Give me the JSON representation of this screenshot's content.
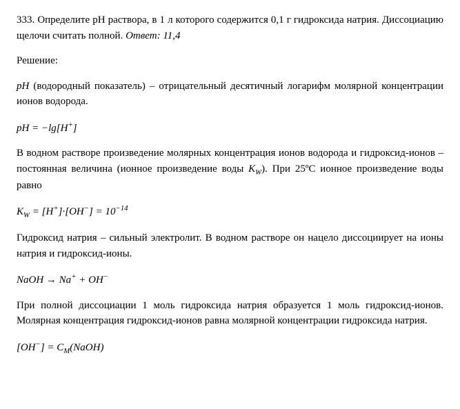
{
  "problem": {
    "number": "333.",
    "statement": "Определите рН раствора, в 1 л которого содержится 0,1 г гидроксида натрия. Диссоциацию щелочи считать полной.",
    "answer_label": "Ответ:",
    "answer_value": "11,4"
  },
  "solution_label": "Решение:",
  "para1": {
    "term": "pH",
    "term_explain": "(водородный показатель) – отрицательный десятичный логарифм молярной концентрации ионов водорода."
  },
  "formula1": {
    "lhs": "pH",
    "eq": " = ",
    "rhs_prefix": "−lg[",
    "ion": "H",
    "ion_charge": "+",
    "rhs_suffix": "]"
  },
  "para2": {
    "text_before": "В водном растворе произведение молярных концентрация ионов водорода и гидроксид-ионов – постоянная величина (ионное произведение воды ",
    "kw": "K",
    "kw_sub": "W",
    "text_after": "). При 25ºС ионное произведение воды равно"
  },
  "formula2": {
    "kw": "K",
    "kw_sub": "W",
    "eq": " = [",
    "h": "H",
    "h_charge": "+",
    "mid": "]·[",
    "oh": "OH",
    "oh_charge": "−",
    "end": "] = 10",
    "exp": "−14"
  },
  "para3": "Гидроксид натрия – сильный электролит. В водном растворе он нацело диссоциирует на ионы натрия и гидроксид-ионы.",
  "formula3": {
    "naoh": "NaOH",
    "arrow": " → ",
    "na": "Na",
    "na_charge": "+",
    "plus": " + ",
    "oh": "OH",
    "oh_charge": "−"
  },
  "para4": "При полной диссоциации 1 моль гидроксида натрия образуется 1 моль гидроксид-ионов. Молярная концентрация гидроксид-ионов равна молярной концентрации гидроксида натрия.",
  "formula4": {
    "lbracket": "[",
    "oh": "OH",
    "oh_charge": "−",
    "rbracket_eq": "] = ",
    "c": "C",
    "c_sub": "M",
    "paren_open": "(",
    "naoh": "NaOH",
    "paren_close": ")"
  }
}
